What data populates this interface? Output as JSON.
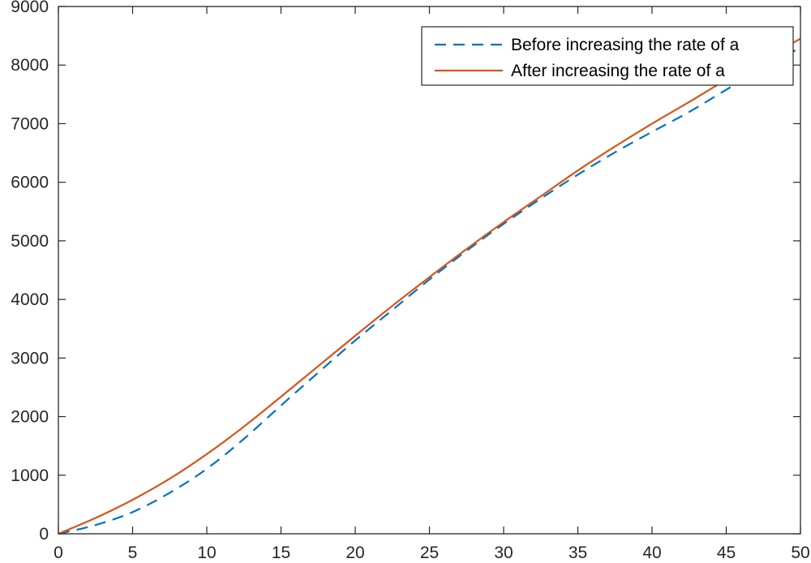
{
  "chart_data": {
    "type": "line",
    "title": "",
    "xlabel": "",
    "ylabel": "",
    "xlim": [
      0,
      50
    ],
    "ylim": [
      0,
      9000
    ],
    "xticks": [
      "0",
      "5",
      "10",
      "15",
      "20",
      "25",
      "30",
      "35",
      "40",
      "45",
      "50"
    ],
    "yticks": [
      "0",
      "1000",
      "2000",
      "3000",
      "4000",
      "5000",
      "6000",
      "7000",
      "8000",
      "9000"
    ],
    "grid": false,
    "box": true,
    "legend_position": "top-right",
    "series": [
      {
        "name": "Before increasing the rate of a",
        "color": "#0072BD",
        "style": "dashed",
        "x": [
          0,
          2.5,
          5,
          7.5,
          10,
          12.5,
          15,
          17.5,
          20,
          22.5,
          25,
          27.5,
          30,
          32.5,
          35,
          37.5,
          40,
          42.5,
          45,
          47.5,
          50
        ],
        "y": [
          0,
          150,
          370,
          700,
          1110,
          1620,
          2190,
          2750,
          3300,
          3820,
          4340,
          4830,
          5290,
          5720,
          6130,
          6510,
          6860,
          7200,
          7580,
          7950,
          8300
        ]
      },
      {
        "name": "After increasing the rate of a",
        "color": "#D95319",
        "style": "solid",
        "x": [
          0,
          2.5,
          5,
          7.5,
          10,
          12.5,
          15,
          17.5,
          20,
          22.5,
          25,
          27.5,
          30,
          32.5,
          35,
          37.5,
          40,
          42.5,
          45,
          47.5,
          50
        ],
        "y": [
          0,
          270,
          580,
          940,
          1360,
          1830,
          2340,
          2860,
          3380,
          3890,
          4380,
          4860,
          5320,
          5760,
          6200,
          6610,
          7000,
          7370,
          7750,
          8100,
          8450
        ]
      }
    ]
  }
}
